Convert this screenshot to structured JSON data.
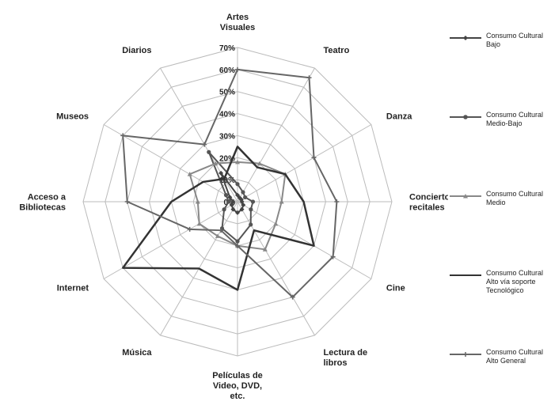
{
  "chart_data": {
    "type": "radar",
    "categories": [
      "Artes Visuales",
      "Teatro",
      "Danza",
      "Conciertos y recitales",
      "Cine",
      "Lectura de libros",
      "Películas de Video, DVD, etc.",
      "Música",
      "Internet",
      "Acceso a Bibliotecas",
      "Museos",
      "Diarios"
    ],
    "axis_ticks": [
      "0%",
      "10%",
      "20%",
      "30%",
      "40%",
      "50%",
      "60%",
      "70%"
    ],
    "rlim": [
      0,
      70
    ],
    "grid": true,
    "legend_position": "right",
    "series": [
      {
        "name": "Consumo Cultural Bajo",
        "color": "#444444",
        "marker": "diamond",
        "values": [
          3,
          2,
          2,
          2,
          3,
          4,
          5,
          4,
          3,
          2,
          4,
          15
        ]
      },
      {
        "name": "Consumo Cultural Medio-Bajo",
        "color": "#555555",
        "marker": "circle",
        "values": [
          8,
          5,
          4,
          7,
          7,
          12,
          18,
          14,
          7,
          4,
          6,
          26
        ]
      },
      {
        "name": "Consumo Cultural Medio",
        "color": "#888888",
        "marker": "triangle",
        "values": [
          18,
          20,
          25,
          20,
          20,
          25,
          20,
          18,
          20,
          18,
          25,
          20
        ]
      },
      {
        "name": "Consumo Cultural Alto vía soporte Tecnológico",
        "color": "#333333",
        "marker": "none",
        "values": [
          25,
          18,
          25,
          30,
          40,
          15,
          40,
          35,
          60,
          30,
          18,
          12
        ]
      },
      {
        "name": "Consumo Cultural Alto General",
        "color": "#666666",
        "marker": "plus",
        "values": [
          60,
          65,
          40,
          45,
          50,
          50,
          20,
          15,
          25,
          50,
          60,
          30
        ]
      }
    ]
  }
}
